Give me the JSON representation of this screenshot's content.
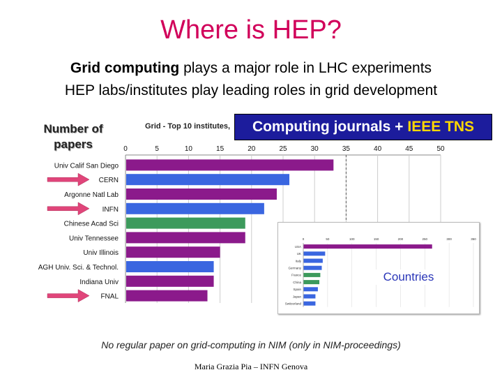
{
  "slide": {
    "title": "Where is HEP?",
    "line1_bold": "Grid computing",
    "line1_rest": " plays a major role in LHC experiments",
    "line2": "HEP labs/institutes play leading roles in grid development",
    "ylabel_line1": "Number of",
    "ylabel_line2": "papers",
    "banner_main": "Computing journals +",
    "banner_tns": "IEEE TNS",
    "chart_title": "Grid - Top 10 institutes,",
    "inset_label": "Countries",
    "note": "No regular paper on grid-computing in NIM (only in NIM-proceedings)",
    "footer": "Maria Grazia Pia – INFN Genova"
  },
  "colors": {
    "title": "#d1005a",
    "purple": "#8b1a8b",
    "blue": "#3a66e0",
    "green": "#3c9a5c",
    "arrow": "#e0457a",
    "banner_bg": "#1c1c9c"
  },
  "chart_data": [
    {
      "type": "bar",
      "orientation": "horizontal",
      "title": "Grid - Top 10 institutes,",
      "ylabel": "Number of papers",
      "xlim": [
        0,
        50
      ],
      "xticks": [
        0,
        5,
        10,
        15,
        20,
        25,
        30,
        35,
        40,
        45,
        50
      ],
      "categories": [
        "Univ Calif San Diego",
        "CERN",
        "Argonne Natl Lab",
        "INFN",
        "Chinese Acad Sci",
        "Univ Tennessee",
        "Univ Illinois",
        "AGH Univ. Sci. & Technol.",
        "Indiana Univ",
        "FNAL"
      ],
      "values": [
        33,
        26,
        24,
        22,
        19,
        19,
        15,
        14,
        14,
        13
      ],
      "bar_colors": [
        "#8b1a8b",
        "#3a66e0",
        "#8b1a8b",
        "#3a66e0",
        "#3c9a5c",
        "#8b1a8b",
        "#8b1a8b",
        "#3a66e0",
        "#8b1a8b",
        "#8b1a8b"
      ],
      "highlighted": [
        "CERN",
        "INFN",
        "FNAL"
      ],
      "grid": true
    },
    {
      "type": "bar",
      "orientation": "horizontal",
      "xlim": [
        0,
        350
      ],
      "xticks": [
        0,
        50,
        100,
        150,
        200,
        250,
        300,
        350
      ],
      "categories": [
        "USA",
        "UK",
        "Italy",
        "Germany",
        "France",
        "China",
        "Spain",
        "Japan",
        "Switzerland"
      ],
      "values": [
        265,
        45,
        40,
        38,
        35,
        33,
        30,
        25,
        25
      ],
      "bar_colors": [
        "#8b1a8b",
        "#3a66e0",
        "#3a66e0",
        "#3a66e0",
        "#3c9a5c",
        "#3c9a5c",
        "#3a66e0",
        "#3a66e0",
        "#3a66e0"
      ]
    }
  ]
}
